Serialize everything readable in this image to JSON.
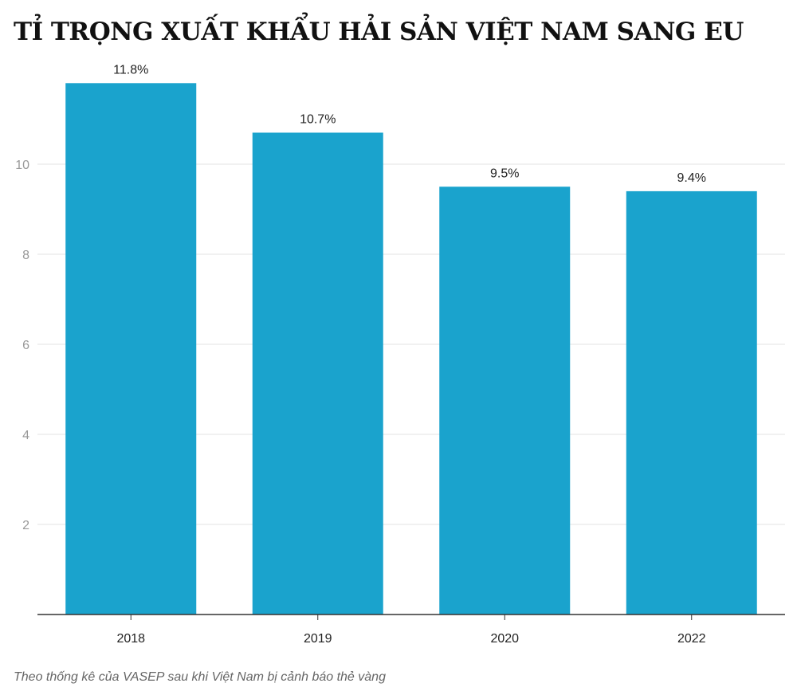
{
  "title": "TỈ TRỌNG XUẤT KHẨU HẢI SẢN VIỆT NAM SANG EU",
  "footer": "Theo thống kê của VASEP sau khi Việt Nam bị cảnh báo thẻ vàng",
  "colors": {
    "bar": "#1aa3cd",
    "grid": "#e3e3e3",
    "axis": "#333333",
    "tick_label": "#999999"
  },
  "chart_data": {
    "type": "bar",
    "title": "TỈ TRỌNG XUẤT KHẨU HẢI SẢN VIỆT NAM SANG EU",
    "categories": [
      "2018",
      "2019",
      "2020",
      "2022"
    ],
    "values": [
      11.8,
      10.7,
      9.5,
      9.4
    ],
    "data_labels": [
      "11.8%",
      "10.7%",
      "9.5%",
      "9.4%"
    ],
    "xlabel": "",
    "ylabel": "",
    "ylim": [
      0,
      12
    ],
    "yticks": [
      2,
      4,
      6,
      8,
      10
    ],
    "ytick_labels": [
      "2",
      "4",
      "6",
      "8",
      "10"
    ],
    "grid": true
  }
}
